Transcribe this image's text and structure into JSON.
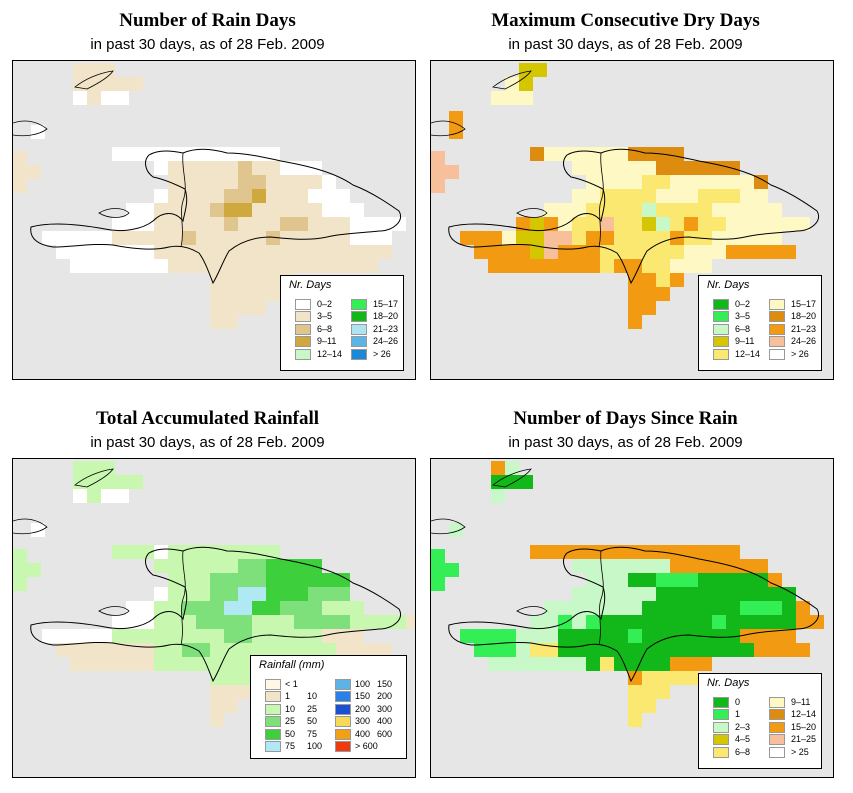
{
  "panels": [
    {
      "title": "Number of Rain Days",
      "subtitle": "in past 30 days, as of  28 Feb. 2009",
      "legend": {
        "title": "Nr. Days",
        "items": [
          {
            "label": "0–2",
            "color": "#ffffff"
          },
          {
            "label": "3–5",
            "color": "#f2e4c8"
          },
          {
            "label": "6–8",
            "color": "#e0c58e"
          },
          {
            "label": "9–11",
            "color": "#cfa93e"
          },
          {
            "label": "12–14",
            "color": "#c8f8c8"
          },
          {
            "label": "15–17",
            "color": "#33ee55"
          },
          {
            "label": "18–20",
            "color": "#12b81a"
          },
          {
            "label": "21–23",
            "color": "#aee4f2"
          },
          {
            "label": "24–26",
            "color": "#5ab4e6"
          },
          {
            "label": "> 26",
            "color": "#1e88d8"
          }
        ]
      }
    },
    {
      "title": "Maximum Consecutive Dry Days",
      "subtitle": "in past 30 days, as of  28 Feb. 2009",
      "legend": {
        "title": "Nr. Days",
        "items": [
          {
            "label": "0–2",
            "color": "#12b81a"
          },
          {
            "label": "3–5",
            "color": "#33ee55"
          },
          {
            "label": "6–8",
            "color": "#c8f8c8"
          },
          {
            "label": "9–11",
            "color": "#d4c600"
          },
          {
            "label": "12–14",
            "color": "#fbe870"
          },
          {
            "label": "15–17",
            "color": "#fdf8c4"
          },
          {
            "label": "18–20",
            "color": "#dd8c10"
          },
          {
            "label": "21–23",
            "color": "#f29a12"
          },
          {
            "label": "24–26",
            "color": "#f8c09a"
          },
          {
            "label": "> 26",
            "color": "#ffffff"
          }
        ]
      }
    },
    {
      "title": "Total Accumulated Rainfall",
      "subtitle": "in past 30 days, as of  28 Feb. 2009",
      "legend": {
        "title": "Rainfall (mm)",
        "items": [
          {
            "lo": "< 1",
            "hi": "",
            "color": "#fff6e6"
          },
          {
            "lo": "1",
            "hi": "10",
            "color": "#f2e4c8"
          },
          {
            "lo": "10",
            "hi": "25",
            "color": "#c8f8b0"
          },
          {
            "lo": "25",
            "hi": "50",
            "color": "#7ee07a"
          },
          {
            "lo": "50",
            "hi": "75",
            "color": "#3ed03c"
          },
          {
            "lo": "75",
            "hi": "100",
            "color": "#b0e8f4"
          },
          {
            "lo": "100",
            "hi": "150",
            "color": "#5ab4e6"
          },
          {
            "lo": "150",
            "hi": "200",
            "color": "#2a80e6"
          },
          {
            "lo": "200",
            "hi": "300",
            "color": "#1a50d0"
          },
          {
            "lo": "300",
            "hi": "400",
            "color": "#f8d858"
          },
          {
            "lo": "400",
            "hi": "600",
            "color": "#f2a018"
          },
          {
            "lo": "> 600",
            "hi": "",
            "color": "#ee3a10"
          }
        ]
      }
    },
    {
      "title": "Number of Days Since Rain",
      "subtitle": "in past 30 days, as of  28 Feb. 2009",
      "legend": {
        "title": "Nr. Days",
        "items": [
          {
            "label": "0",
            "color": "#12b81a"
          },
          {
            "label": "1",
            "color": "#33ee55"
          },
          {
            "label": "2–3",
            "color": "#c8f8c8"
          },
          {
            "label": "4–5",
            "color": "#d4c600"
          },
          {
            "label": "6–8",
            "color": "#fbe870"
          },
          {
            "label": "9–11",
            "color": "#fdf8c4"
          },
          {
            "label": "12–14",
            "color": "#dd8c10"
          },
          {
            "label": "15–20",
            "color": "#f29a12"
          },
          {
            "label": "21–25",
            "color": "#f8c09a"
          },
          {
            "label": "> 25",
            "color": "#ffffff"
          }
        ]
      }
    }
  ]
}
